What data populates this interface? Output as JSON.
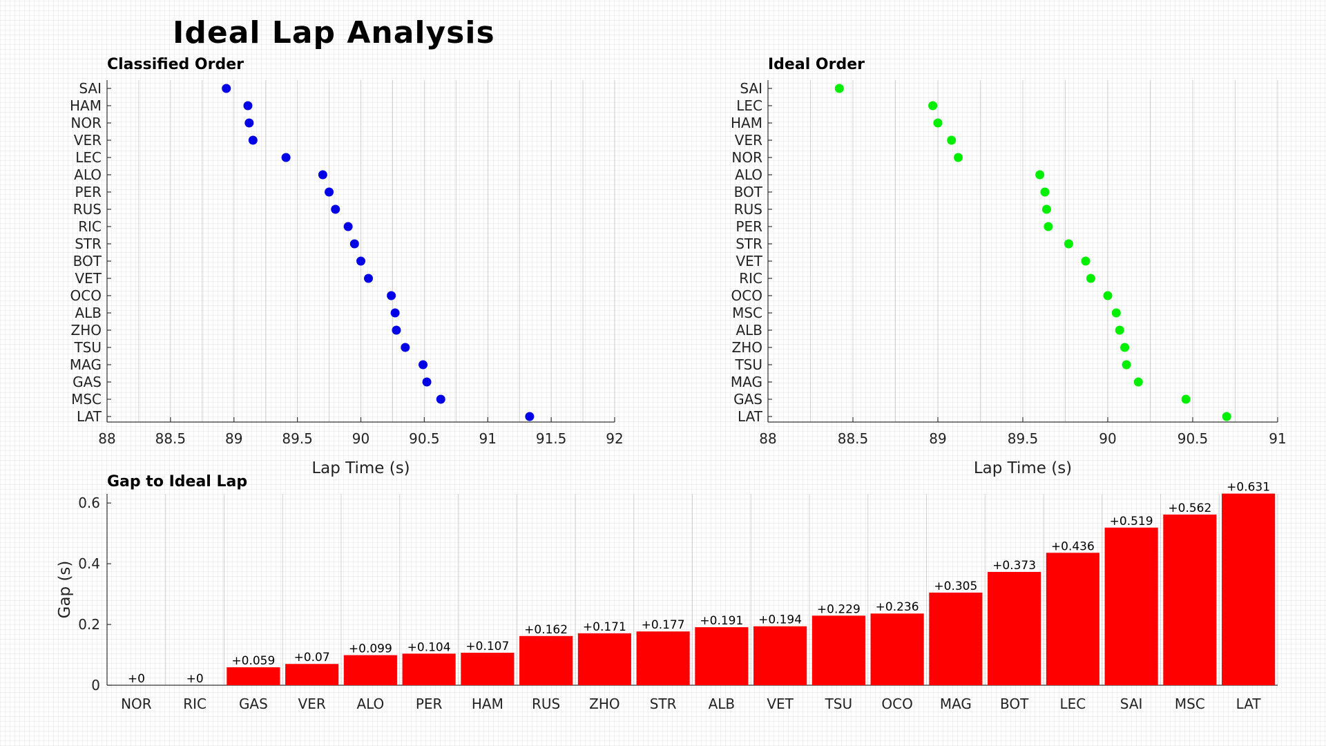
{
  "title": "Ideal Lap Analysis",
  "colors": {
    "classified": "#0000e6",
    "ideal": "#00ee00",
    "gap": "#ff0000"
  },
  "chart_data": [
    {
      "type": "scatter",
      "title": "Classified Order",
      "xlabel": "Lap Time (s)",
      "ylabel": "",
      "xlim": [
        88,
        92
      ],
      "xticks": [
        88,
        88.5,
        89,
        89.5,
        90,
        90.5,
        91,
        91.5,
        92
      ],
      "drivers": [
        "SAI",
        "HAM",
        "NOR",
        "VER",
        "LEC",
        "ALO",
        "PER",
        "RUS",
        "RIC",
        "STR",
        "BOT",
        "VET",
        "OCO",
        "ALB",
        "ZHO",
        "TSU",
        "MAG",
        "GAS",
        "MSC",
        "LAT"
      ],
      "values": [
        88.94,
        89.11,
        89.12,
        89.15,
        89.41,
        89.7,
        89.75,
        89.8,
        89.9,
        89.95,
        90.0,
        90.06,
        90.24,
        90.27,
        90.28,
        90.35,
        90.49,
        90.52,
        90.63,
        91.33
      ],
      "grid": true
    },
    {
      "type": "scatter",
      "title": "Ideal Order",
      "xlabel": "Lap Time (s)",
      "ylabel": "",
      "xlim": [
        88,
        91
      ],
      "xticks": [
        88,
        88.5,
        89,
        89.5,
        90,
        90.5,
        91
      ],
      "drivers": [
        "SAI",
        "LEC",
        "HAM",
        "VER",
        "NOR",
        "ALO",
        "BOT",
        "RUS",
        "PER",
        "STR",
        "VET",
        "RIC",
        "OCO",
        "MSC",
        "ALB",
        "ZHO",
        "TSU",
        "MAG",
        "GAS",
        "LAT"
      ],
      "values": [
        88.42,
        88.97,
        89.0,
        89.08,
        89.12,
        89.6,
        89.63,
        89.64,
        89.65,
        89.77,
        89.87,
        89.9,
        90.0,
        90.05,
        90.07,
        90.1,
        90.11,
        90.18,
        90.46,
        90.7
      ],
      "grid": true
    },
    {
      "type": "bar",
      "title": "Gap to Ideal Lap",
      "xlabel": "",
      "ylabel": "Gap (s)",
      "ylim": [
        0,
        0.63
      ],
      "yticks": [
        0,
        0.2,
        0.4,
        0.6
      ],
      "categories": [
        "NOR",
        "RIC",
        "GAS",
        "VER",
        "ALO",
        "PER",
        "HAM",
        "RUS",
        "ZHO",
        "STR",
        "ALB",
        "VET",
        "TSU",
        "OCO",
        "MAG",
        "BOT",
        "LEC",
        "SAI",
        "MSC",
        "LAT"
      ],
      "values": [
        0,
        0,
        0.059,
        0.07,
        0.099,
        0.104,
        0.107,
        0.162,
        0.171,
        0.177,
        0.191,
        0.194,
        0.229,
        0.236,
        0.305,
        0.373,
        0.436,
        0.519,
        0.562,
        0.631
      ],
      "labels": [
        "+0",
        "+0",
        "+0.059",
        "+0.07",
        "+0.099",
        "+0.104",
        "+0.107",
        "+0.162",
        "+0.171",
        "+0.177",
        "+0.191",
        "+0.194",
        "+0.229",
        "+0.236",
        "+0.305",
        "+0.373",
        "+0.436",
        "+0.519",
        "+0.562",
        "+0.631"
      ],
      "grid": true
    }
  ]
}
